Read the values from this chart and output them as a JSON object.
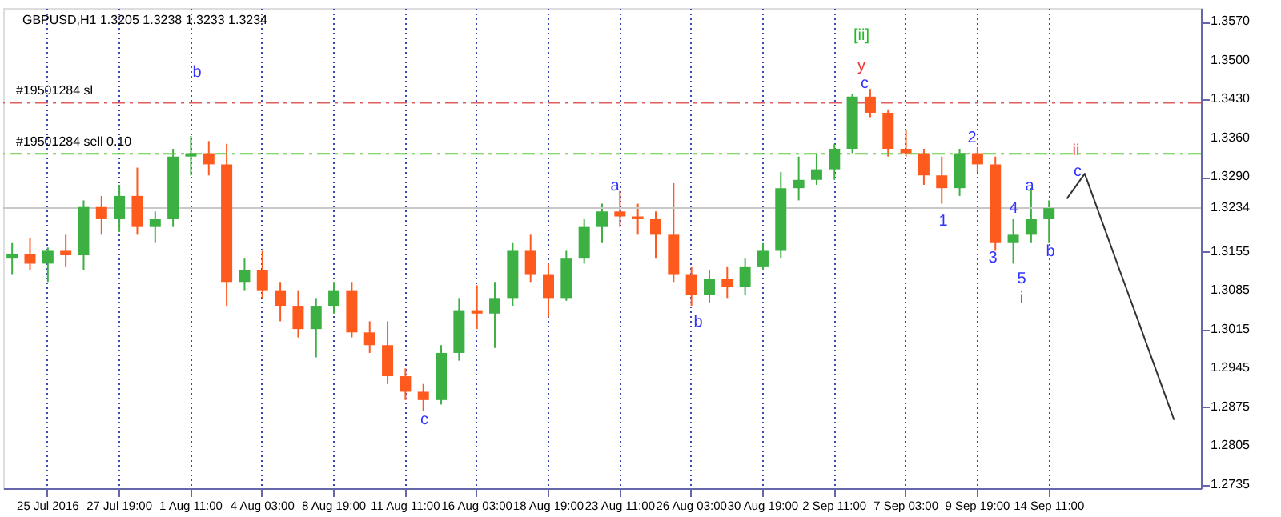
{
  "chart_data": {
    "type": "candlestick",
    "title": "GBPUSD,H1  1.3205 1.3238 1.3233 1.3234",
    "categories": [
      null,
      null,
      "25 Jul 2016",
      null,
      null,
      null,
      "27 Jul 19:00",
      null,
      null,
      null,
      "1 Aug 11:00",
      null,
      null,
      null,
      "4 Aug 03:00",
      null,
      null,
      null,
      "8 Aug 19:00",
      null,
      null,
      null,
      "11 Aug 11:00",
      null,
      null,
      null,
      "16 Aug 03:00",
      null,
      null,
      null,
      "18 Aug 19:00",
      null,
      null,
      null,
      "23 Aug 11:00",
      null,
      null,
      null,
      "26 Aug 03:00",
      null,
      null,
      null,
      "30 Aug 19:00",
      null,
      null,
      null,
      "2 Sep 11:00",
      null,
      null,
      null,
      "7 Sep 03:00",
      null,
      null,
      null,
      "9 Sep 19:00",
      null,
      null,
      null,
      "14 Sep 11:00",
      null,
      null,
      null,
      null,
      null,
      null,
      null,
      null
    ],
    "ohlc": [
      [
        1.3143,
        1.3171,
        1.3115,
        1.3152
      ],
      [
        1.3152,
        1.318,
        1.3123,
        1.3134
      ],
      [
        1.3134,
        1.3163,
        1.3101,
        1.3157
      ],
      [
        1.3157,
        1.3186,
        1.3129,
        1.3149
      ],
      [
        1.3149,
        1.3248,
        1.3123,
        1.3236
      ],
      [
        1.3236,
        1.3256,
        1.3186,
        1.3214
      ],
      [
        1.3214,
        1.3276,
        1.3191,
        1.3256
      ],
      [
        1.3256,
        1.3307,
        1.3186,
        1.32
      ],
      [
        1.32,
        1.3228,
        1.3171,
        1.3214
      ],
      [
        1.3214,
        1.3341,
        1.32,
        1.3327
      ],
      [
        1.3327,
        1.3364,
        1.3293,
        1.3333
      ],
      [
        1.3333,
        1.3355,
        1.3293,
        1.3313
      ],
      [
        1.3313,
        1.335,
        1.3058,
        1.3101
      ],
      [
        1.3101,
        1.3143,
        1.3086,
        1.3123
      ],
      [
        1.3123,
        1.3157,
        1.3072,
        1.3086
      ],
      [
        1.3086,
        1.3101,
        1.303,
        1.3058
      ],
      [
        1.3058,
        1.3086,
        1.3001,
        1.3016
      ],
      [
        1.3016,
        1.3072,
        1.2965,
        1.3058
      ],
      [
        1.3058,
        1.3101,
        1.3044,
        1.3086
      ],
      [
        1.3086,
        1.3101,
        1.3001,
        1.301
      ],
      [
        1.301,
        1.303,
        1.2973,
        1.2987
      ],
      [
        1.2987,
        1.303,
        1.2917,
        1.2931
      ],
      [
        1.2931,
        1.2945,
        1.2888,
        1.2903
      ],
      [
        1.2903,
        1.2917,
        1.2869,
        1.2888
      ],
      [
        1.2888,
        1.2987,
        1.288,
        1.2973
      ],
      [
        1.2973,
        1.3072,
        1.2959,
        1.305
      ],
      [
        1.305,
        1.3095,
        1.3016,
        1.3044
      ],
      [
        1.3044,
        1.3101,
        1.2982,
        1.3072
      ],
      [
        1.3072,
        1.3171,
        1.3058,
        1.3157
      ],
      [
        1.3157,
        1.3186,
        1.3101,
        1.3115
      ],
      [
        1.3115,
        1.3134,
        1.3038,
        1.3072
      ],
      [
        1.3072,
        1.3157,
        1.3067,
        1.3143
      ],
      [
        1.3143,
        1.3214,
        1.3134,
        1.32
      ],
      [
        1.32,
        1.3242,
        1.3171,
        1.3228
      ],
      [
        1.3228,
        1.3265,
        1.32,
        1.3219
      ],
      [
        1.3219,
        1.3242,
        1.3186,
        1.3214
      ],
      [
        1.3214,
        1.3228,
        1.3143,
        1.3186
      ],
      [
        1.3186,
        1.3279,
        1.3101,
        1.3115
      ],
      [
        1.3115,
        1.3129,
        1.3058,
        1.3078
      ],
      [
        1.3078,
        1.3123,
        1.3064,
        1.3106
      ],
      [
        1.3106,
        1.3129,
        1.3072,
        1.3092
      ],
      [
        1.3092,
        1.3143,
        1.3078,
        1.3129
      ],
      [
        1.3129,
        1.3171,
        1.3123,
        1.3157
      ],
      [
        1.3157,
        1.3299,
        1.3143,
        1.327
      ],
      [
        1.327,
        1.3327,
        1.3248,
        1.3285
      ],
      [
        1.3285,
        1.3333,
        1.3276,
        1.3304
      ],
      [
        1.3304,
        1.335,
        1.3285,
        1.3341
      ],
      [
        1.3341,
        1.344,
        1.3333,
        1.3435
      ],
      [
        1.3435,
        1.3449,
        1.3398,
        1.3406
      ],
      [
        1.3406,
        1.3412,
        1.3327,
        1.3341
      ],
      [
        1.3341,
        1.3375,
        1.3327,
        1.3333
      ],
      [
        1.3333,
        1.3341,
        1.3276,
        1.3293
      ],
      [
        1.3293,
        1.3327,
        1.3242,
        1.327
      ],
      [
        1.327,
        1.3341,
        1.3256,
        1.3333
      ],
      [
        1.3333,
        1.3344,
        1.3299,
        1.3313
      ],
      [
        1.3313,
        1.3327,
        1.3157,
        1.3171
      ],
      [
        1.3171,
        1.3214,
        1.3134,
        1.3186
      ],
      [
        1.3186,
        1.327,
        1.3171,
        1.3214
      ],
      [
        1.3214,
        1.3248,
        1.3171,
        1.3234
      ],
      null,
      null,
      null,
      null,
      null,
      null,
      null,
      null
    ],
    "colors": [
      "#3cb043",
      "#ff5a1e",
      "#3cb043",
      "#ff5a1e",
      "#3cb043",
      "#ff5a1e",
      "#3cb043",
      "#ff5a1e",
      "#3cb043",
      "#3cb043",
      "#3cb043",
      "#ff5a1e",
      "#ff5a1e",
      "#3cb043",
      "#ff5a1e",
      "#ff5a1e",
      "#ff5a1e",
      "#3cb043",
      "#3cb043",
      "#ff5a1e",
      "#ff5a1e",
      "#ff5a1e",
      "#ff5a1e",
      "#ff5a1e",
      "#3cb043",
      "#3cb043",
      "#ff5a1e",
      "#3cb043",
      "#3cb043",
      "#ff5a1e",
      "#ff5a1e",
      "#3cb043",
      "#3cb043",
      "#3cb043",
      "#ff5a1e",
      "#ff5a1e",
      "#ff5a1e",
      "#ff5a1e",
      "#ff5a1e",
      "#3cb043",
      "#ff5a1e",
      "#3cb043",
      "#3cb043",
      "#3cb043",
      "#3cb043",
      "#3cb043",
      "#3cb043",
      "#3cb043",
      "#ff5a1e",
      "#ff5a1e",
      "#ff5a1e",
      "#ff5a1e",
      "#ff5a1e",
      "#3cb043",
      "#ff5a1e",
      "#ff5a1e",
      "#3cb043",
      "#3cb043",
      "#3cb043",
      null,
      null,
      null,
      null,
      null,
      null,
      null,
      null
    ],
    "series": [
      {
        "type": "line",
        "color": "#333333",
        "values": [
          null,
          null,
          null,
          null,
          null,
          null,
          null,
          null,
          null,
          null,
          null,
          null,
          null,
          null,
          null,
          null,
          null,
          null,
          null,
          null,
          null,
          null,
          null,
          null,
          null,
          null,
          null,
          null,
          null,
          null,
          null,
          null,
          null,
          null,
          null,
          null,
          null,
          null,
          null,
          null,
          null,
          null,
          null,
          null,
          null,
          null,
          null,
          null,
          null,
          null,
          null,
          null,
          null,
          null,
          null,
          null,
          null,
          null,
          null,
          1.3251,
          1.3296,
          1.3207,
          1.3118,
          1.303,
          1.2941,
          1.2852,
          null
        ]
      }
    ],
    "ylim": [
      1.2729,
      1.3595
    ],
    "yticks": [
      1.2735,
      1.2805,
      1.2875,
      1.2945,
      1.3015,
      1.3085,
      1.3155,
      {
        "value": 1.3234,
        "label": "1.3234"
      },
      {
        "value": 1.329,
        "label": "1.3290"
      },
      {
        "value": 1.336,
        "label": "1.3360"
      },
      {
        "value": 1.343,
        "label": "1.3430"
      },
      {
        "value": 1.35,
        "label": "1.3500"
      },
      {
        "value": 1.357,
        "label": "1.3570"
      }
    ],
    "grid": "x",
    "ref_lines": [
      {
        "axis": "y",
        "value": 1.3424,
        "label": "#19501284 sl",
        "color": "#e06060",
        "line_style": "dashed"
      },
      {
        "axis": "y",
        "value": 1.3332,
        "label": "#19501284 sell 0.10",
        "color": "#66cc44",
        "line_style": "dashed"
      },
      {
        "axis": "y",
        "value": 1.3234,
        "color": "#c8c8c8",
        "line_style": "solid"
      }
    ],
    "annotations": [
      "b",
      "c",
      "a",
      "b",
      "[ii]",
      "y",
      "c",
      "2",
      "1",
      "3",
      "4",
      "a",
      "5",
      "i",
      "b",
      "ii",
      "c"
    ]
  }
}
